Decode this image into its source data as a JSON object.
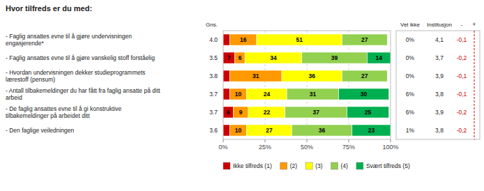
{
  "chart_data": {
    "type": "bar",
    "orientation": "horizontal",
    "stacked": true,
    "title": "Hvor tilfreds er du med:",
    "categories": [
      "- Faglig ansattes evne til å gjøre undervisningen\nengasjerende*",
      "- Faglig ansattes evne til å gjøre vanskelig stoff forståelig",
      "- Hvordan undervisningen dekker studieprogrammets\nlærestoff (pensum)",
      "- Antall tilbakemeldinger du har fått fra faglig ansatte på ditt\narbeid",
      "- De faglig ansattes evne til å gi konstruktive\ntilbakemeldinger på arbeidet ditt",
      "- Den faglige veiledningen"
    ],
    "series": [
      {
        "name": "Ikke tilfreds (1)",
        "color": "#cc0000",
        "values": [
          4,
          7,
          4,
          4,
          6,
          4
        ],
        "value_labels": [
          null,
          "7",
          null,
          null,
          "6",
          null
        ]
      },
      {
        "name": "(2)",
        "color": "#ff9900",
        "values": [
          16,
          6,
          31,
          10,
          9,
          10
        ],
        "value_labels": [
          "16",
          "6",
          "31",
          "10",
          "9",
          "10"
        ]
      },
      {
        "name": "(3)",
        "color": "#ffff00",
        "values": [
          51,
          34,
          36,
          24,
          22,
          27
        ],
        "value_labels": [
          "51",
          "34",
          "36",
          "24",
          "22",
          "27"
        ]
      },
      {
        "name": "(4)",
        "color": "#92d050",
        "values": [
          27,
          39,
          27,
          31,
          37,
          36
        ],
        "value_labels": [
          "27",
          "39",
          "27",
          "31",
          "37",
          "36"
        ]
      },
      {
        "name": "Svært tilfreds (5)",
        "color": "#00b050",
        "values": [
          null,
          14,
          null,
          30,
          25,
          23
        ],
        "value_labels": [
          null,
          "14",
          null,
          "30",
          "25",
          "23"
        ]
      }
    ],
    "xlim": [
      0,
      100
    ],
    "xticks": [
      {
        "value": 0,
        "label": "0%"
      },
      {
        "value": 25,
        "label": "25%"
      },
      {
        "value": 50,
        "label": "50%"
      },
      {
        "value": 75,
        "label": "75%"
      },
      {
        "value": 100,
        "label": "100%"
      }
    ],
    "grid": true,
    "legend": "bottom",
    "data_labels": true,
    "columns": [
      {
        "name": "Gns.",
        "values": [
          4.0,
          3.5,
          3.8,
          3.7,
          3.7,
          3.6
        ],
        "value_labels": [
          "4.0",
          "3.5",
          "3.8",
          "3.7",
          "3.7",
          "3.6"
        ]
      },
      {
        "name": "Vet ikke",
        "values": [
          0,
          0,
          0,
          6,
          6,
          1
        ],
        "value_labels": [
          "0%",
          "0%",
          "0%",
          "6%",
          "6%",
          "1%"
        ]
      },
      {
        "name": "Institusjon",
        "values": [
          4.1,
          3.7,
          3.9,
          3.8,
          3.9,
          3.8
        ],
        "value_labels": [
          "4,1",
          "3,7",
          "3,9",
          "3,8",
          "3,9",
          "3,8"
        ]
      },
      {
        "name": "-",
        "color": "#cc0000",
        "values": [
          -0.1,
          -0.2,
          -0.1,
          -0.1,
          -0.2,
          -0.2
        ],
        "value_labels": [
          "-0,1",
          "-0,2",
          "-0,1",
          "-0,1",
          "-0,2",
          "-0,2"
        ]
      }
    ],
    "annotations": [
      "+"
    ]
  }
}
